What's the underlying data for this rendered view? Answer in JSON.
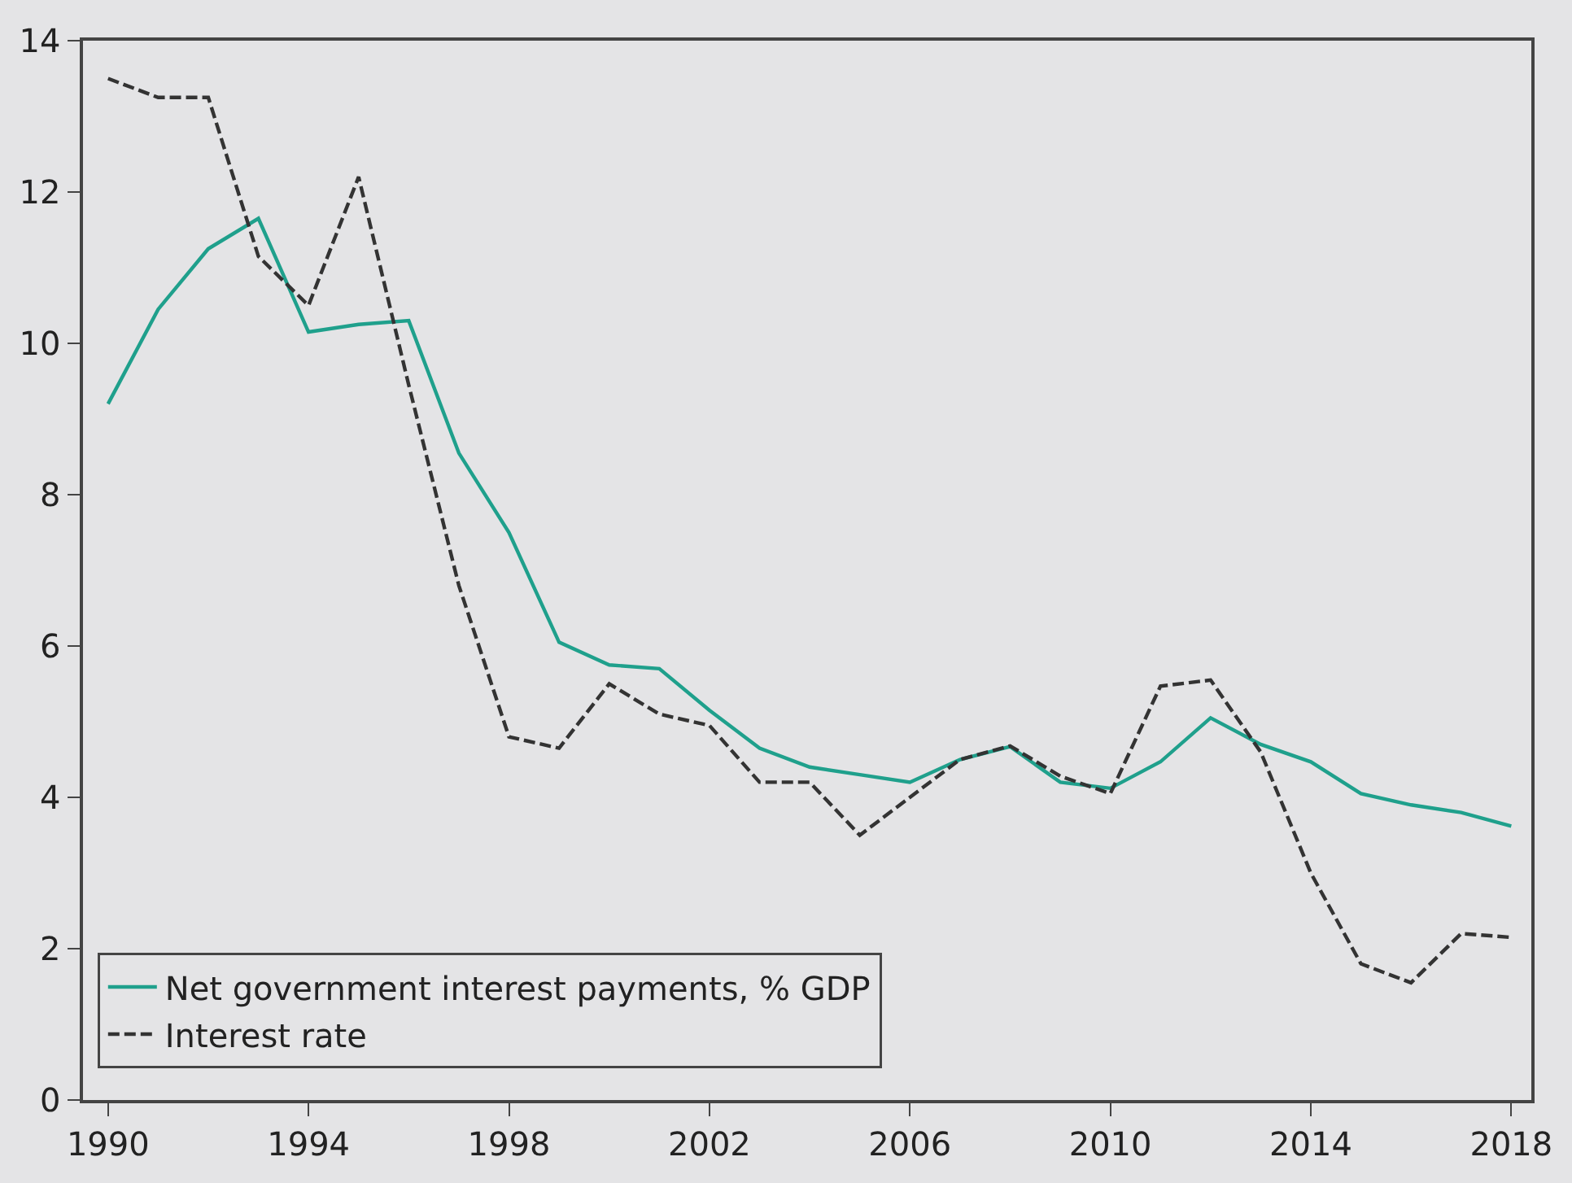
{
  "chart_data": {
    "type": "line",
    "x": [
      1990,
      1991,
      1992,
      1993,
      1994,
      1995,
      1996,
      1997,
      1998,
      1999,
      2000,
      2001,
      2002,
      2003,
      2004,
      2005,
      2006,
      2007,
      2008,
      2009,
      2010,
      2011,
      2012,
      2013,
      2014,
      2015,
      2016,
      2017,
      2018
    ],
    "series": [
      {
        "name": "Net government interest payments, % GDP",
        "color": "#1fa08c",
        "line_style": "solid",
        "values": [
          9.2,
          10.45,
          11.25,
          11.65,
          10.15,
          10.25,
          10.3,
          8.55,
          7.5,
          6.05,
          5.75,
          5.7,
          5.15,
          4.65,
          4.4,
          4.3,
          4.2,
          4.5,
          4.67,
          4.2,
          4.12,
          4.47,
          5.05,
          4.7,
          4.47,
          4.05,
          3.9,
          3.8,
          3.62
        ]
      },
      {
        "name": "Interest rate",
        "color": "#333333",
        "line_style": "dashed",
        "values": [
          13.5,
          13.25,
          13.25,
          11.15,
          10.5,
          12.2,
          9.45,
          6.8,
          4.8,
          4.65,
          5.5,
          5.1,
          4.95,
          4.2,
          4.2,
          3.5,
          4.0,
          4.5,
          4.68,
          4.28,
          4.05,
          5.47,
          5.55,
          4.6,
          3.0,
          1.8,
          1.55,
          2.2,
          2.15
        ]
      }
    ],
    "xlim": [
      1989.5,
      2018.4
    ],
    "xticks": [
      1990,
      1994,
      1998,
      2002,
      2006,
      2010,
      2014,
      2018
    ],
    "ylim": [
      0,
      14
    ],
    "yticks": [
      0,
      2,
      4,
      6,
      8,
      10,
      12,
      14
    ],
    "grid": false,
    "legend": "bottom left",
    "marker": "none"
  }
}
